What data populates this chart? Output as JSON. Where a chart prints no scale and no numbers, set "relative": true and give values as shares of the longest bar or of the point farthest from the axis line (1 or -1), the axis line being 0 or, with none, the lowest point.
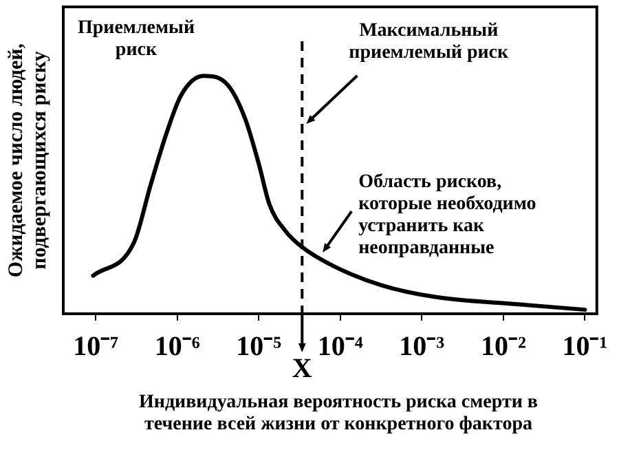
{
  "chart_data": {
    "type": "line",
    "relative": true,
    "log": "x",
    "grid": false,
    "legend": false,
    "marker": "none",
    "line_style": "solid",
    "xlabel": "Индивидуальная вероятность риска смерти в течение всей жизни от конкретного фактора",
    "ylabel": "Ожидаемое число людей, подвергающихся риску",
    "xlim": [
      4e-08,
      0.14
    ],
    "xticks": [
      {
        "value": 1e-07,
        "label": "10⁻⁷"
      },
      {
        "value": 1e-06,
        "label": "10⁻⁶"
      },
      {
        "value": 1e-05,
        "label": "10⁻⁵"
      },
      {
        "value": 0.0001,
        "label": "10⁻⁴"
      },
      {
        "value": 0.001,
        "label": "10⁻³"
      },
      {
        "value": 0.01,
        "label": "10⁻²"
      },
      {
        "value": 0.1,
        "label": "10⁻¹"
      }
    ],
    "ref_lines": [
      {
        "axis": "x",
        "value": 3.4e-05,
        "label": "X",
        "color": "#000000",
        "line_style": "dashed"
      }
    ],
    "annotations": [
      "Приемлемый риск",
      "Максимальный приемлемый риск",
      {
        "text": "Область рисков, которые необходимо устранить как неоправданные",
        "x": 5.2e-05,
        "y": 0.24
      }
    ],
    "series": [
      {
        "color": "#000000",
        "x": [
          9.3e-08,
          2.95e-07,
          4.7e-07,
          7.4e-07,
          1.12e-06,
          2.1e-06,
          4.2e-06,
          6.8e-06,
          1e-05,
          1.35e-05,
          2.1e-05,
          3.4e-05,
          8.3e-05,
          0.00032,
          0.0015,
          0.015,
          0.1
        ],
        "values": [
          0.16,
          0.3,
          0.54,
          0.76,
          0.92,
          1.0,
          0.96,
          0.82,
          0.63,
          0.46,
          0.35,
          0.28,
          0.2,
          0.12,
          0.07,
          0.04,
          0.017
        ]
      }
    ]
  }
}
